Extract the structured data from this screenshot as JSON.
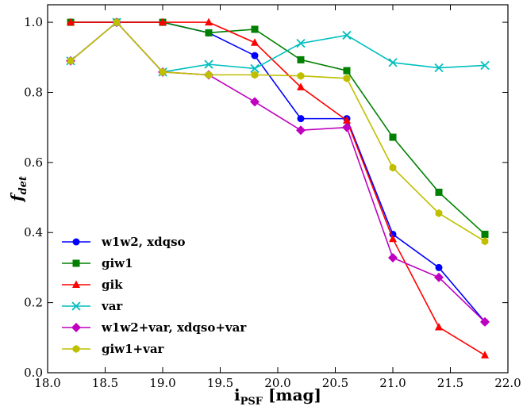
{
  "chart_data": {
    "type": "line",
    "title": "",
    "xlabel": "i",
    "xlabel_sub": "PSF",
    "xlabel_unit": " [mag]",
    "ylabel": "f",
    "ylabel_sub": "det",
    "xlim": [
      18.0,
      22.0
    ],
    "ylim": [
      0.0,
      1.05
    ],
    "xticks": [
      18.0,
      18.5,
      19.0,
      19.5,
      20.0,
      20.5,
      21.0,
      21.5,
      22.0
    ],
    "xtick_labels": [
      "18.0",
      "18.5",
      "19.0",
      "19.5",
      "20.0",
      "20.5",
      "21.0",
      "21.5",
      "22.0"
    ],
    "yticks": [
      0.0,
      0.2,
      0.4,
      0.6,
      0.8,
      1.0
    ],
    "ytick_labels": [
      "0.0",
      "0.2",
      "0.4",
      "0.6",
      "0.8",
      "1.0"
    ],
    "grid": false,
    "legend_position": "lower-left",
    "series": [
      {
        "name": "w1w2, xdqso",
        "color": "#0000ff",
        "marker": "circle",
        "x": [
          18.2,
          18.6,
          19.0,
          19.4,
          19.8,
          20.2,
          20.6,
          21.0,
          21.4,
          21.8
        ],
        "y": [
          1.0,
          1.0,
          1.0,
          0.97,
          0.905,
          0.725,
          0.725,
          0.395,
          0.3,
          0.145
        ]
      },
      {
        "name": "giw1",
        "color": "#008000",
        "marker": "square",
        "x": [
          18.2,
          18.6,
          19.0,
          19.4,
          19.8,
          20.2,
          20.6,
          21.0,
          21.4,
          21.8
        ],
        "y": [
          1.0,
          1.0,
          1.0,
          0.97,
          0.98,
          0.893,
          0.862,
          0.672,
          0.515,
          0.395
        ]
      },
      {
        "name": "gik",
        "color": "#ff0000",
        "marker": "triangle",
        "x": [
          18.2,
          18.6,
          19.0,
          19.4,
          19.8,
          20.2,
          20.6,
          21.0,
          21.4,
          21.8
        ],
        "y": [
          1.0,
          1.0,
          1.0,
          1.0,
          0.942,
          0.815,
          0.72,
          0.382,
          0.13,
          0.05
        ]
      },
      {
        "name": "var",
        "color": "#00bfbf",
        "marker": "x",
        "x": [
          18.2,
          18.6,
          19.0,
          19.4,
          19.8,
          20.2,
          20.6,
          21.0,
          21.4,
          21.8
        ],
        "y": [
          0.89,
          1.0,
          0.858,
          0.88,
          0.868,
          0.94,
          0.963,
          0.885,
          0.87,
          0.877
        ]
      },
      {
        "name": "w1w2+var, xdqso+var",
        "color": "#bf00bf",
        "marker": "diamond",
        "x": [
          18.2,
          18.6,
          19.0,
          19.4,
          19.8,
          20.2,
          20.6,
          21.0,
          21.4,
          21.8
        ],
        "y": [
          0.89,
          1.0,
          0.858,
          0.85,
          0.773,
          0.692,
          0.7,
          0.328,
          0.272,
          0.145
        ]
      },
      {
        "name": "giw1+var",
        "color": "#bfbf00",
        "marker": "hexagon",
        "x": [
          18.2,
          18.6,
          19.0,
          19.4,
          19.8,
          20.2,
          20.6,
          21.0,
          21.4,
          21.8
        ],
        "y": [
          0.89,
          1.0,
          0.858,
          0.85,
          0.85,
          0.847,
          0.84,
          0.585,
          0.455,
          0.375
        ]
      }
    ]
  }
}
